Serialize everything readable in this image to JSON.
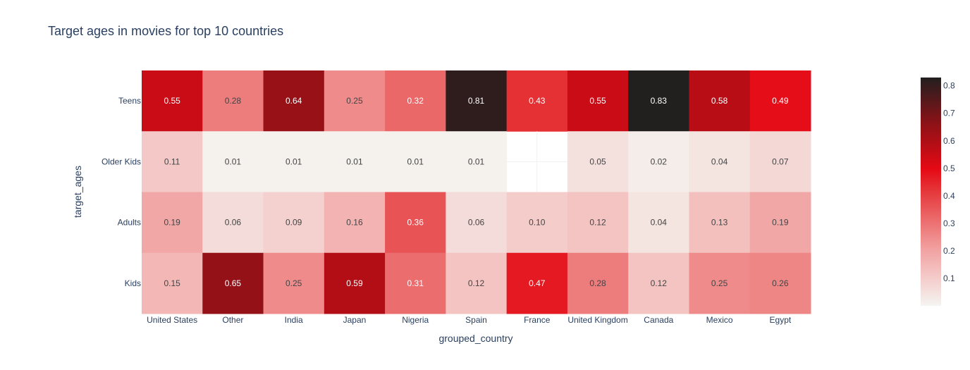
{
  "chart_data": {
    "type": "heatmap",
    "title": "Target ages in movies for top 10 countries",
    "xlabel": "grouped_country",
    "ylabel": "target_ages",
    "x": [
      "United States",
      "Other",
      "India",
      "Japan",
      "Nigeria",
      "Spain",
      "France",
      "United Kingdom",
      "Canada",
      "Mexico",
      "Egypt"
    ],
    "y": [
      "Teens",
      "Older Kids",
      "Adults",
      "Kids"
    ],
    "z": [
      [
        0.55,
        0.28,
        0.64,
        0.25,
        0.32,
        0.81,
        0.43,
        0.55,
        0.83,
        0.58,
        0.49
      ],
      [
        0.11,
        0.01,
        0.01,
        0.01,
        0.01,
        0.01,
        null,
        0.05,
        0.02,
        0.04,
        0.07
      ],
      [
        0.19,
        0.06,
        0.09,
        0.16,
        0.36,
        0.06,
        0.1,
        0.12,
        0.04,
        0.13,
        0.19
      ],
      [
        0.15,
        0.65,
        0.25,
        0.59,
        0.31,
        0.12,
        0.47,
        0.28,
        0.12,
        0.25,
        0.26
      ]
    ],
    "text": [
      [
        "0.55",
        "0.28",
        "0.64",
        "0.25",
        "0.32",
        "0.81",
        "0.43",
        "0.55",
        "0.83",
        "0.58",
        "0.49"
      ],
      [
        "0.11",
        "0.01",
        "0.01",
        "0.01",
        "0.01",
        "0.01",
        "",
        "0.05",
        "0.02",
        "0.04",
        "0.07"
      ],
      [
        "0.19",
        "0.06",
        "0.09",
        "0.16",
        "0.36",
        "0.06",
        "0.10",
        "0.12",
        "0.04",
        "0.13",
        "0.19"
      ],
      [
        "0.15",
        "0.65",
        "0.25",
        "0.59",
        "0.31",
        "0.12",
        "0.47",
        "0.28",
        "0.12",
        "0.25",
        "0.26"
      ]
    ],
    "zmin": 0.0,
    "zmax": 0.83,
    "colorscale": [
      [
        0.0,
        "#f5f5f1"
      ],
      [
        0.25,
        "#f2a0a0"
      ],
      [
        0.5,
        "#e5383b"
      ],
      [
        0.6,
        "#e50914"
      ],
      [
        0.8,
        "#8b1217"
      ],
      [
        1.0,
        "#221f1f"
      ]
    ],
    "colorbar": {
      "ticks": [
        0.1,
        0.2,
        0.3,
        0.4,
        0.5,
        0.6,
        0.7,
        0.8
      ],
      "ticklabels": [
        "0.1",
        "0.2",
        "0.3",
        "0.4",
        "0.5",
        "0.6",
        "0.7",
        "0.8"
      ]
    }
  }
}
